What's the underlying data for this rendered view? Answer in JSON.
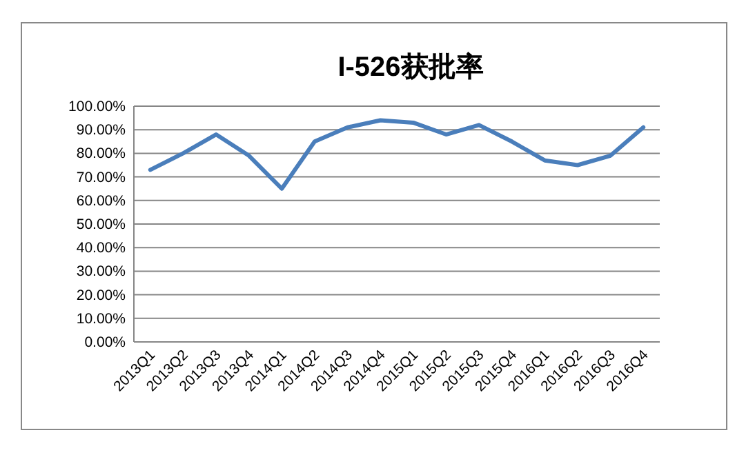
{
  "chart_data": {
    "type": "line",
    "title": "I-526获批率",
    "categories": [
      "2013Q1",
      "2013Q2",
      "2013Q3",
      "2013Q4",
      "2014Q1",
      "2014Q2",
      "2014Q3",
      "2014Q4",
      "2015Q1",
      "2015Q2",
      "2015Q3",
      "2015Q4",
      "2016Q1",
      "2016Q2",
      "2016Q3",
      "2016Q4"
    ],
    "series": [
      {
        "color": "#4a7ebb",
        "values": [
          73,
          80,
          88,
          79,
          65,
          85,
          91,
          94,
          93,
          88,
          92,
          85,
          77,
          75,
          79,
          91
        ]
      }
    ],
    "ylim": [
      0,
      100
    ],
    "yticks": [
      {
        "value": 0,
        "label": "0.00%"
      },
      {
        "value": 10,
        "label": "10.00%"
      },
      {
        "value": 20,
        "label": "20.00%"
      },
      {
        "value": 30,
        "label": "30.00%"
      },
      {
        "value": 40,
        "label": "40.00%"
      },
      {
        "value": 50,
        "label": "50.00%"
      },
      {
        "value": 60,
        "label": "60.00%"
      },
      {
        "value": 70,
        "label": "70.00%"
      },
      {
        "value": 80,
        "label": "80.00%"
      },
      {
        "value": 90,
        "label": "90.00%"
      },
      {
        "value": 100,
        "label": "100.00%"
      }
    ],
    "grid": "y",
    "marker": "none",
    "line_style": "solid"
  }
}
